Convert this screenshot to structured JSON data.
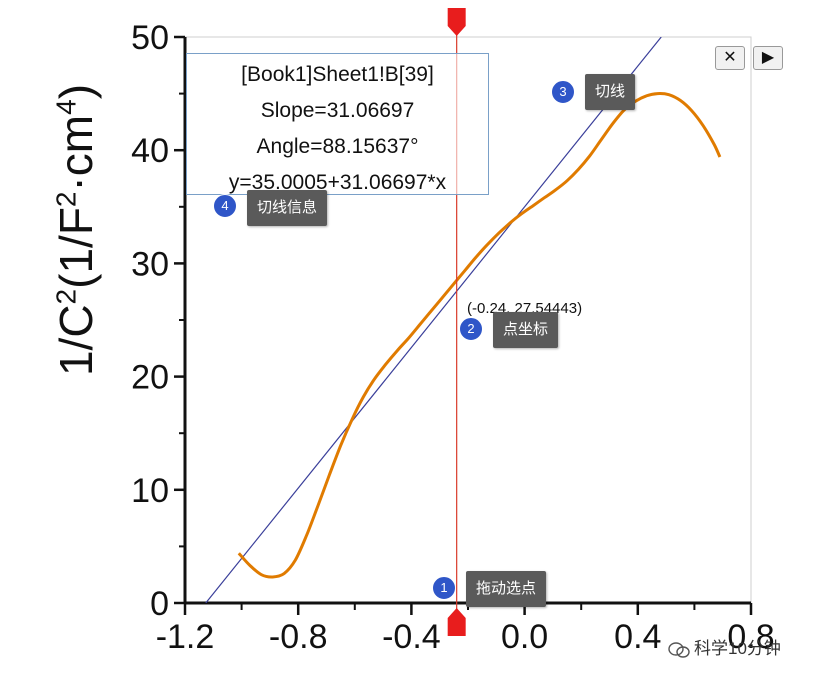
{
  "chart_data": {
    "type": "line",
    "xlim": [
      -1.2,
      0.8
    ],
    "ylim": [
      0,
      50
    ],
    "x_ticks": [
      -1.2,
      -0.8,
      -0.4,
      0.0,
      0.4,
      0.8
    ],
    "x_tick_labels": [
      "-1.2",
      "-0.8",
      "-0.4",
      "0.0",
      "0.4",
      "0.8"
    ],
    "y_ticks": [
      0,
      10,
      20,
      30,
      40,
      50
    ],
    "y_tick_labels": [
      "0",
      "10",
      "20",
      "30",
      "40",
      "50"
    ],
    "ylabel_main": "1/C",
    "ylabel_exp1": "2",
    "ylabel_mid": "(1/F",
    "ylabel_exp2": "2",
    "ylabel_mid2": "·cm",
    "ylabel_exp3": "4",
    "ylabel_end": ")",
    "curve_color": "#e07b00",
    "tangent_color": "#3a3f9a",
    "cursor_color": "#d93a2a",
    "series": [
      {
        "x": [
          -1.01,
          -0.97,
          -0.93,
          -0.89,
          -0.85,
          -0.81,
          -0.77,
          -0.73,
          -0.69,
          -0.65,
          -0.61,
          -0.57,
          -0.53,
          -0.49,
          -0.45,
          -0.41,
          -0.37,
          -0.33,
          -0.29,
          -0.25,
          -0.21,
          -0.17,
          -0.13,
          -0.09,
          -0.05,
          -0.01,
          0.03,
          0.07,
          0.11,
          0.15,
          0.19,
          0.23,
          0.27,
          0.31,
          0.35,
          0.39,
          0.43,
          0.47,
          0.51,
          0.55,
          0.59,
          0.63,
          0.67,
          0.69
        ],
        "y": [
          4.4,
          3.3,
          2.5,
          2.3,
          2.6,
          3.8,
          6.0,
          8.6,
          11.3,
          13.9,
          16.2,
          18.2,
          19.8,
          21.1,
          22.3,
          23.4,
          24.6,
          25.8,
          27.0,
          28.2,
          29.4,
          30.6,
          31.7,
          32.7,
          33.6,
          34.4,
          35.1,
          35.8,
          36.5,
          37.3,
          38.3,
          39.5,
          40.9,
          42.3,
          43.5,
          44.3,
          44.8,
          45.0,
          44.9,
          44.4,
          43.5,
          42.2,
          40.5,
          39.4
        ]
      }
    ],
    "tangent": {
      "x0": -0.24,
      "y0": 27.54443,
      "slope": 31.06697,
      "intercept": 35.0005
    },
    "selected_point": {
      "x": -0.24,
      "y": 27.54443
    }
  },
  "info": {
    "line1": "[Book1]Sheet1!B[39]",
    "line2": "Slope=31.06697",
    "line3": "Angle=88.15637°",
    "line4": "y=35.0005+31.06697*x"
  },
  "coord_label": "(-0.24, 27.54443)",
  "callouts": [
    {
      "num": "1",
      "text": "拖动选点"
    },
    {
      "num": "2",
      "text": "点坐标"
    },
    {
      "num": "3",
      "text": "切线"
    },
    {
      "num": "4",
      "text": "切线信息"
    }
  ],
  "controls": {
    "close": "✕",
    "next": "▶"
  },
  "watermark": "科学10分钟"
}
